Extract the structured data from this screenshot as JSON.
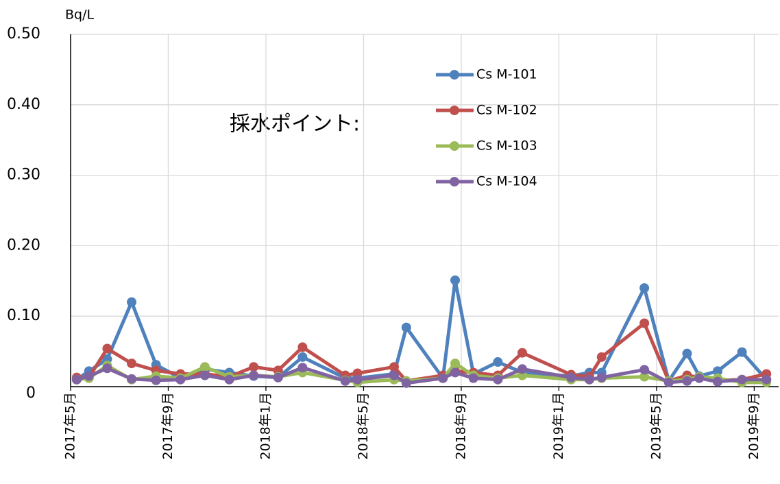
{
  "chart_data": {
    "type": "line",
    "y_axis_label": "Bq/L",
    "annotation": "採水ポイント:",
    "x": [
      "2017-05",
      "2017-05",
      "2017-06",
      "2017-07",
      "2017-08",
      "2017-09",
      "2017-10",
      "2017-11",
      "2017-12",
      "2018-01",
      "2018-02",
      "2018-04",
      "2018-04",
      "2018-06",
      "2018-06",
      "2018-08",
      "2018-08",
      "2018-09",
      "2018-10",
      "2018-11",
      "2019-01",
      "2019-02",
      "2019-02",
      "2019-04",
      "2019-05",
      "2019-06",
      "2019-06",
      "2019-07",
      "2019-08",
      "2019-09"
    ],
    "series": [
      {
        "name": "Cs M-101",
        "color": "#4f81bd",
        "values": [
          0.01,
          0.022,
          0.039,
          0.12,
          0.031,
          0.012,
          0.025,
          0.02,
          0.015,
          0.013,
          0.042,
          0.012,
          0.012,
          0.018,
          0.084,
          0.012,
          0.151,
          0.018,
          0.035,
          0.02,
          0.015,
          0.02,
          0.02,
          0.14,
          0.008,
          0.047,
          0.015,
          0.022,
          0.049,
          0.01
        ]
      },
      {
        "name": "Cs M-102",
        "color": "#c0504d",
        "values": [
          0.013,
          0.013,
          0.054,
          0.033,
          0.023,
          0.018,
          0.018,
          0.014,
          0.028,
          0.023,
          0.056,
          0.016,
          0.019,
          0.028,
          0.008,
          0.016,
          0.022,
          0.02,
          0.016,
          0.048,
          0.017,
          0.014,
          0.042,
          0.09,
          0.008,
          0.016,
          0.013,
          0.009,
          0.01,
          0.018
        ]
      },
      {
        "name": "Cs M-103",
        "color": "#9bbb59",
        "values": [
          0.01,
          0.012,
          0.03,
          0.01,
          0.015,
          0.012,
          0.028,
          0.014,
          0.016,
          0.014,
          0.02,
          0.009,
          0.006,
          0.01,
          0.008,
          0.012,
          0.033,
          0.016,
          0.012,
          0.016,
          0.01,
          0.01,
          0.012,
          0.014,
          0.008,
          0.01,
          0.014,
          0.012,
          0.006,
          0.006
        ]
      },
      {
        "name": "Cs M-104",
        "color": "#8064a2",
        "values": [
          0.01,
          0.015,
          0.026,
          0.011,
          0.009,
          0.01,
          0.016,
          0.01,
          0.016,
          0.013,
          0.027,
          0.008,
          0.01,
          0.016,
          0.005,
          0.012,
          0.02,
          0.012,
          0.01,
          0.025,
          0.013,
          0.01,
          0.013,
          0.024,
          0.006,
          0.008,
          0.012,
          0.007,
          0.01,
          0.01
        ]
      }
    ],
    "xlim": [
      "2017-05",
      "2019-10"
    ],
    "xticks": [
      {
        "value": "2017-05",
        "label": "2017年5月"
      },
      {
        "value": "2017-09",
        "label": "2017年9月"
      },
      {
        "value": "2018-01",
        "label": "2018年1月"
      },
      {
        "value": "2018-05",
        "label": "2018年5月"
      },
      {
        "value": "2018-09",
        "label": "2018年9月"
      },
      {
        "value": "2019-01",
        "label": "2019年1月"
      },
      {
        "value": "2019-05",
        "label": "2019年5月"
      },
      {
        "value": "2019-09",
        "label": "2019年9月"
      }
    ],
    "ylim": [
      0,
      0.5
    ],
    "yticks": [
      0,
      {
        "value": 0.1,
        "label": "0.10"
      },
      {
        "value": 0.2,
        "label": "0.20"
      },
      {
        "value": 0.3,
        "label": "0.30"
      },
      {
        "value": 0.4,
        "label": "0.40"
      },
      {
        "value": 0.5,
        "label": "0.50"
      }
    ],
    "grid": true,
    "legend": "top-right"
  }
}
